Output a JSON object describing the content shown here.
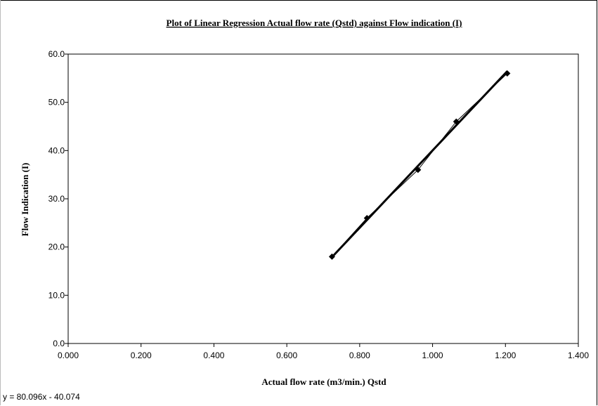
{
  "chart_data": {
    "type": "scatter",
    "title": "Plot of Linear Regression Actual flow rate (Qstd) against Flow indication (I)",
    "xlabel": "Actual flow rate (m3/min.) Qstd",
    "ylabel": "Flow Indication (I)",
    "xlim": [
      0.0,
      1.4
    ],
    "ylim": [
      0.0,
      60.0
    ],
    "x_ticks": [
      "0.000",
      "0.200",
      "0.400",
      "0.600",
      "0.800",
      "1.000",
      "1.200",
      "1.400"
    ],
    "y_ticks": [
      "0.0",
      "10.0",
      "20.0",
      "30.0",
      "40.0",
      "50.0",
      "60.0"
    ],
    "grid": false,
    "series": [
      {
        "points": [
          {
            "x": 0.724,
            "y": 18.0
          },
          {
            "x": 0.82,
            "y": 26.0
          },
          {
            "x": 0.96,
            "y": 36.0
          },
          {
            "x": 1.065,
            "y": 46.0
          },
          {
            "x": 1.205,
            "y": 56.0
          }
        ]
      }
    ],
    "trendline": {
      "slope": 80.096,
      "intercept": -40.074,
      "x_range": [
        0.724,
        1.205
      ]
    },
    "equation_label": "y = 80.096x - 40.074"
  }
}
